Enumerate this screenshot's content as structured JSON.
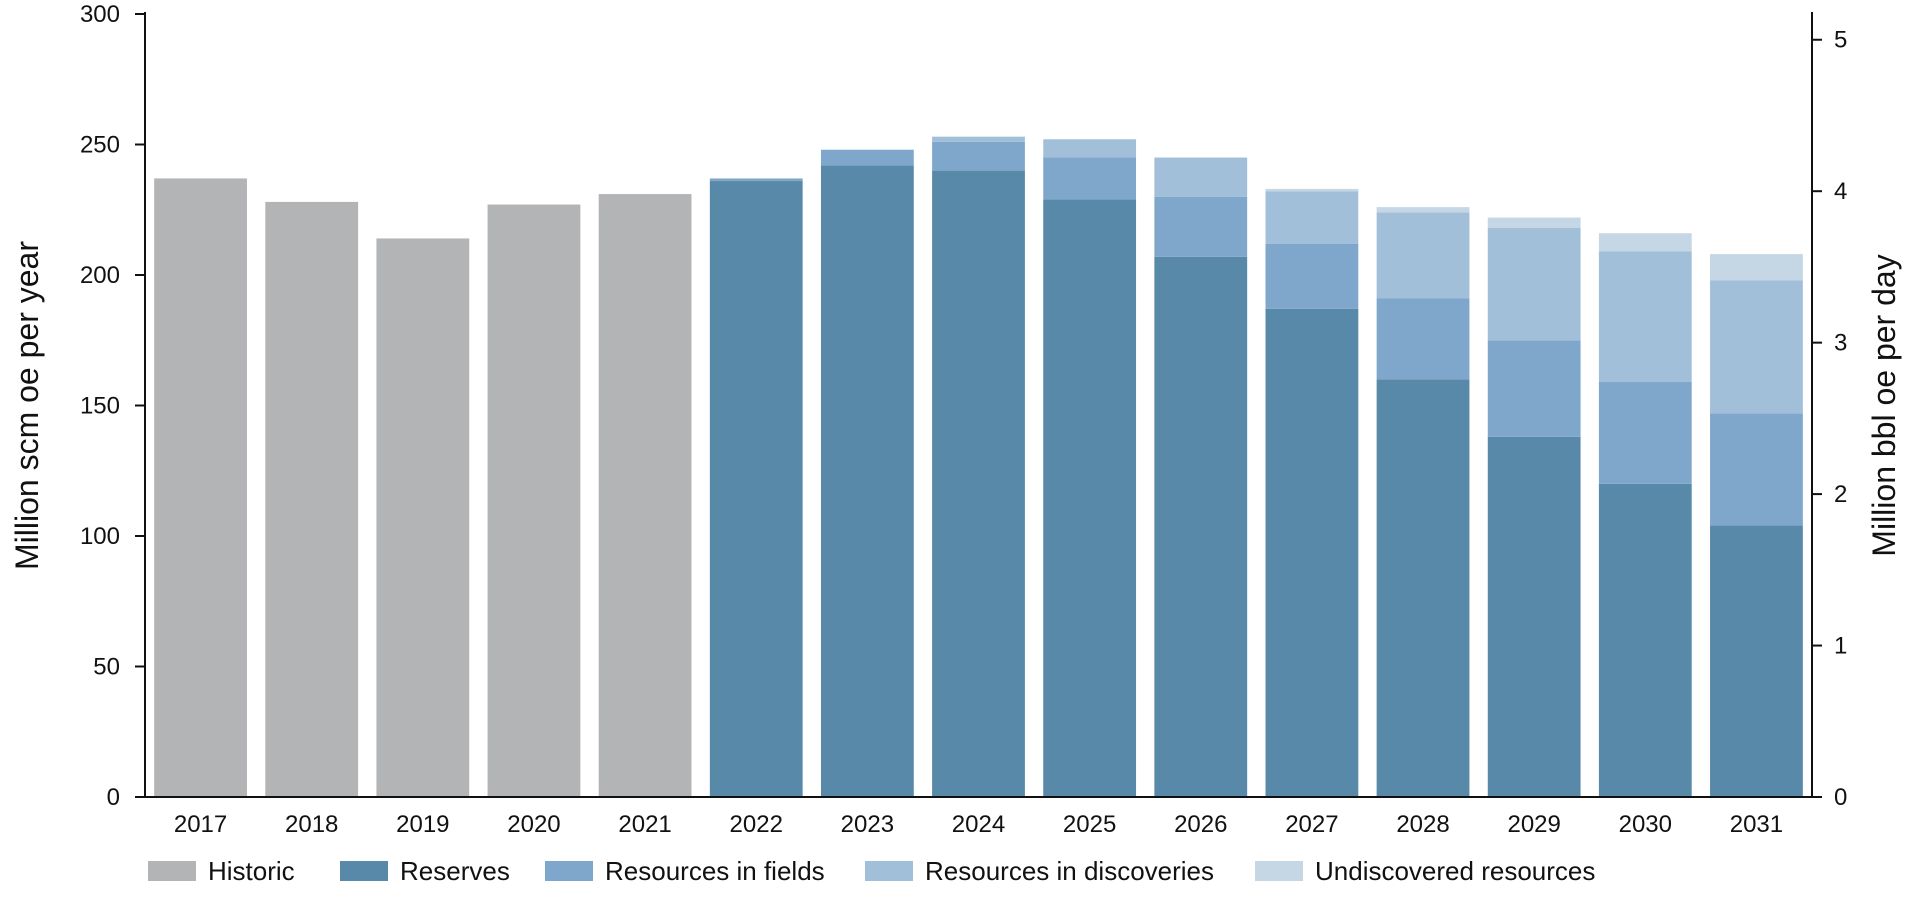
{
  "chart_data": {
    "type": "bar",
    "stacked": true,
    "categories": [
      "2017",
      "2018",
      "2019",
      "2020",
      "2021",
      "2022",
      "2023",
      "2024",
      "2025",
      "2026",
      "2027",
      "2028",
      "2029",
      "2030",
      "2031"
    ],
    "series": [
      {
        "name": "Historic",
        "color": "#b3b4b6",
        "values": [
          237,
          228,
          214,
          227,
          231,
          0,
          0,
          0,
          0,
          0,
          0,
          0,
          0,
          0,
          0
        ]
      },
      {
        "name": "Reserves",
        "color": "#5889a8",
        "values": [
          0,
          0,
          0,
          0,
          0,
          236,
          242,
          240,
          229,
          207,
          187,
          160,
          138,
          120,
          104
        ]
      },
      {
        "name": "Resources in fields",
        "color": "#7fa7cb",
        "values": [
          0,
          0,
          0,
          0,
          0,
          1,
          6,
          11,
          16,
          23,
          25,
          31,
          37,
          39,
          43
        ]
      },
      {
        "name": "Resources in discoveries",
        "color": "#a1bfd8",
        "values": [
          0,
          0,
          0,
          0,
          0,
          0,
          0,
          2,
          7,
          15,
          20,
          33,
          43,
          50,
          51
        ]
      },
      {
        "name": "Undiscovered resources",
        "color": "#c5d6e4",
        "values": [
          0,
          0,
          0,
          0,
          0,
          0,
          0,
          0,
          0,
          0,
          1,
          2,
          4,
          7,
          10
        ]
      }
    ],
    "ylabel": "Million scm oe per year",
    "ylim": [
      0,
      300
    ],
    "yticks": [
      "0",
      "50",
      "100",
      "150",
      "200",
      "250",
      "300"
    ],
    "y2label": "Million bbl oe per day",
    "y2lim": [
      0,
      5.17
    ],
    "y2ticks": [
      "0",
      "1",
      "2",
      "3",
      "4",
      "5"
    ],
    "legend_position": "bottom",
    "grid": false
  }
}
